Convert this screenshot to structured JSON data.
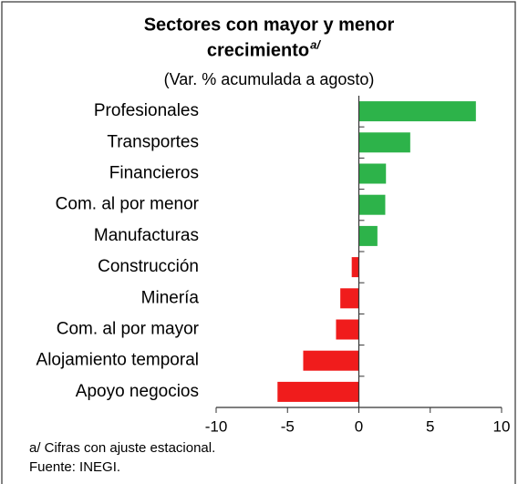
{
  "chart_data": {
    "type": "barh",
    "title_lines": [
      "Sectores con mayor y menor",
      "crecimiento"
    ],
    "title_superscript": "a/",
    "subtitle": "(Var. % acumulada a agosto)",
    "categories": [
      "Profesionales",
      "Transportes",
      "Financieros",
      "Com. al por menor",
      "Manufacturas",
      "Construcción",
      "Minería",
      "Com. al por mayor",
      "Alojamiento temporal",
      "Apoyo negocios"
    ],
    "values": [
      8.2,
      3.6,
      1.9,
      1.85,
      1.3,
      -0.5,
      -1.3,
      -1.6,
      -3.9,
      -5.7
    ],
    "positive_color": "#2db34a",
    "negative_color": "#f01c1c",
    "xlim": [
      -10,
      10
    ],
    "xticks": [
      -10,
      -5,
      0,
      5,
      10
    ],
    "footnotes": [
      "a/ Cifras con ajuste estacional.",
      "Fuente: INEGI."
    ]
  }
}
